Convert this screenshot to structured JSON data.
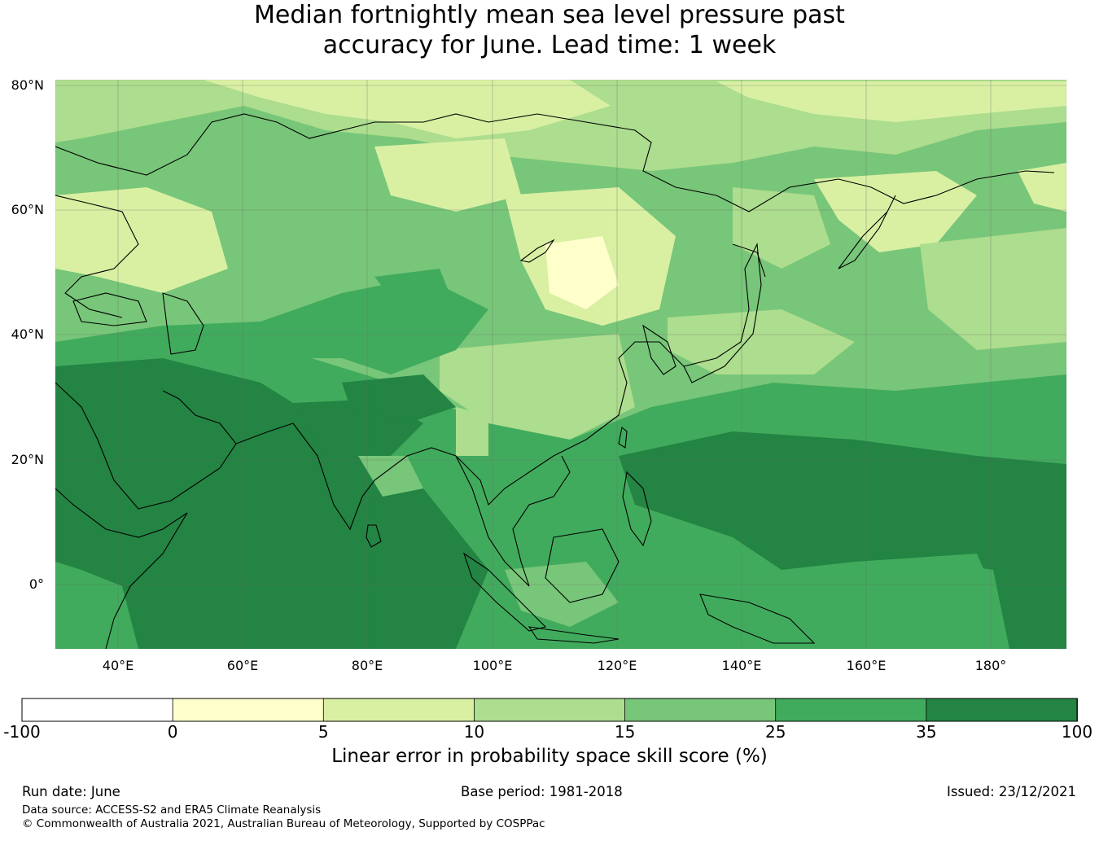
{
  "title": {
    "line1": "Median fortnightly mean sea level pressure past",
    "line2": "accuracy for June. Lead time: 1 week"
  },
  "map": {
    "lat_labels": [
      "80°N",
      "60°N",
      "40°N",
      "20°N",
      "0°"
    ],
    "lon_labels": [
      "40°E",
      "60°E",
      "80°E",
      "100°E",
      "120°E",
      "140°E",
      "160°E",
      "180°"
    ]
  },
  "colorbar": {
    "ticks": [
      "-100",
      "0",
      "5",
      "10",
      "15",
      "25",
      "35",
      "100"
    ],
    "colors": [
      "#ffffff",
      "#ffffcc",
      "#d9f0a3",
      "#addd8e",
      "#78c679",
      "#41ab5d",
      "#238443"
    ],
    "label": "Linear error in probability space skill score (%)"
  },
  "footer": {
    "run_date": "Run date: June",
    "base_period": "Base period: 1981-2018",
    "issued": "Issued: 23/12/2021",
    "data_source": "Data source: ACCESS-S2 and ERA5 Climate Reanalysis",
    "copyright": "© Commonwealth of Australia 2021, Australian Bureau of Meteorology, Supported by COSPPac"
  }
}
